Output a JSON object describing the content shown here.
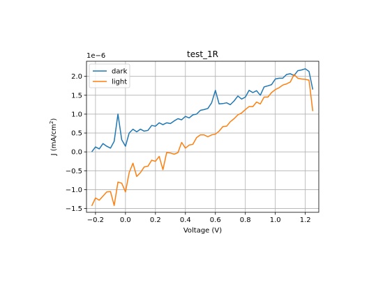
{
  "chart_data": {
    "type": "line",
    "title": "test_1R",
    "xlabel": "Voltage (V)",
    "ylabel_main": "J (mA/cm",
    "ylabel_sup": "2",
    "ylabel_close": ")",
    "offset_label": "1e−6",
    "xlim": [
      -0.26,
      1.29
    ],
    "ylim": [
      -1.6,
      2.4
    ],
    "x_ticks": [
      -0.2,
      0.0,
      0.2,
      0.4,
      0.6,
      0.8,
      1.0,
      1.2
    ],
    "x_tick_labels": [
      "−0.2",
      "0.0",
      "0.2",
      "0.4",
      "0.6",
      "0.8",
      "1.0",
      "1.2"
    ],
    "y_ticks": [
      -1.5,
      -1.0,
      -0.5,
      0.0,
      0.5,
      1.0,
      1.5,
      2.0
    ],
    "y_tick_labels": [
      "−1.5",
      "−1.0",
      "−0.5",
      "0.0",
      "0.5",
      "1.0",
      "1.5",
      "2.0"
    ],
    "grid": true,
    "legend_position": "top-left",
    "x": [
      -0.225,
      -0.2,
      -0.175,
      -0.15,
      -0.125,
      -0.1,
      -0.075,
      -0.05,
      -0.025,
      0.0,
      0.025,
      0.05,
      0.075,
      0.1,
      0.125,
      0.15,
      0.175,
      0.2,
      0.225,
      0.25,
      0.275,
      0.3,
      0.325,
      0.35,
      0.375,
      0.4,
      0.425,
      0.45,
      0.475,
      0.5,
      0.525,
      0.55,
      0.575,
      0.6,
      0.625,
      0.65,
      0.675,
      0.7,
      0.725,
      0.75,
      0.775,
      0.8,
      0.825,
      0.85,
      0.875,
      0.9,
      0.925,
      0.95,
      0.975,
      1.0,
      1.025,
      1.05,
      1.075,
      1.1,
      1.125,
      1.15,
      1.175,
      1.2,
      1.225,
      1.25
    ],
    "series": [
      {
        "name": "dark",
        "color": "#1f77b4",
        "values": [
          0.0,
          0.13,
          0.08,
          0.22,
          0.15,
          0.1,
          0.28,
          1.0,
          0.32,
          0.15,
          0.5,
          0.6,
          0.53,
          0.6,
          0.55,
          0.57,
          0.7,
          0.68,
          0.77,
          0.72,
          0.77,
          0.75,
          0.82,
          0.88,
          0.85,
          0.94,
          0.9,
          0.98,
          1.0,
          1.1,
          1.12,
          1.15,
          1.3,
          1.63,
          1.27,
          1.28,
          1.3,
          1.25,
          1.35,
          1.48,
          1.4,
          1.45,
          1.63,
          1.57,
          1.62,
          1.5,
          1.72,
          1.75,
          1.78,
          1.93,
          1.95,
          1.95,
          2.05,
          2.07,
          2.02,
          2.15,
          2.17,
          2.2,
          2.13,
          1.65
        ]
      },
      {
        "name": "light",
        "color": "#ff7f0e",
        "values": [
          -1.43,
          -1.22,
          -1.28,
          -1.17,
          -1.06,
          -1.05,
          -1.42,
          -0.8,
          -0.83,
          -1.06,
          -0.55,
          -0.3,
          -0.65,
          -0.55,
          -0.4,
          -0.38,
          -0.22,
          -0.25,
          -0.12,
          -0.47,
          -0.02,
          -0.03,
          -0.06,
          -0.02,
          0.25,
          0.1,
          0.18,
          0.2,
          0.38,
          0.45,
          0.45,
          0.4,
          0.45,
          0.47,
          0.55,
          0.67,
          0.68,
          0.8,
          0.88,
          0.98,
          1.03,
          1.12,
          1.2,
          1.2,
          1.32,
          1.27,
          1.45,
          1.45,
          1.57,
          1.65,
          1.7,
          1.77,
          1.8,
          1.85,
          2.05,
          1.95,
          1.93,
          1.92,
          1.9,
          1.08
        ]
      }
    ]
  }
}
